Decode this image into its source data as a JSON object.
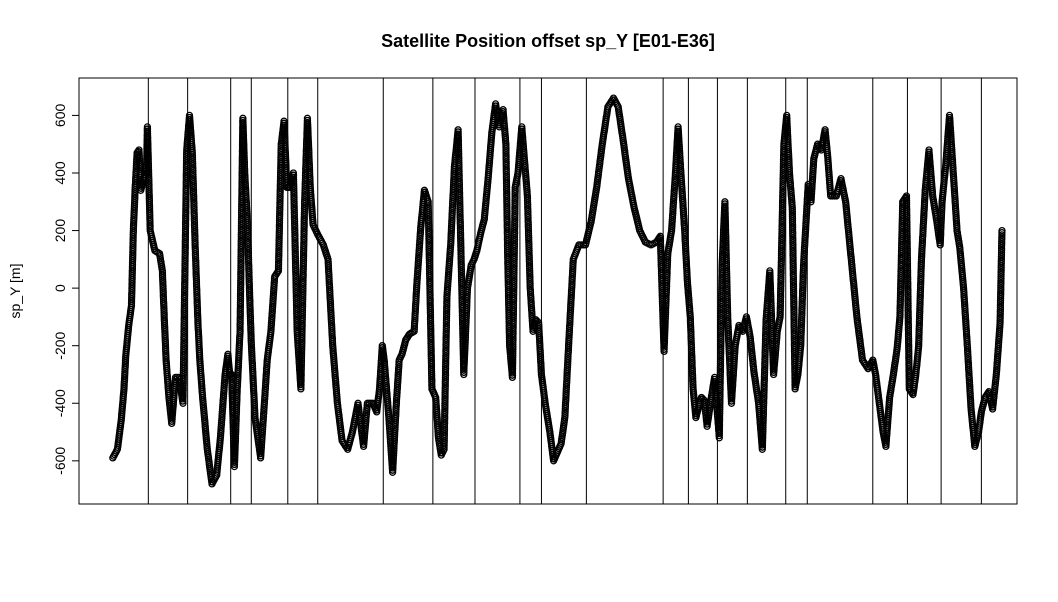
{
  "chart_data": {
    "type": "scatter",
    "title": "Satellite Position offset sp_Y [E01-E36]",
    "xlabel": "",
    "ylabel": "sp_Y [m]",
    "ylim": [
      -750,
      730
    ],
    "yticks": [
      -600,
      -400,
      -200,
      0,
      200,
      400,
      600
    ],
    "ytick_labels": [
      "-600",
      "-400",
      "-200",
      "0",
      "200",
      "400",
      "600"
    ],
    "xlim": [
      0,
      1000
    ],
    "marker": "open-circle",
    "marker_color": "#000000",
    "separators": [
      73,
      115,
      161,
      183,
      222,
      254,
      324,
      377,
      422,
      470,
      493,
      541,
      623,
      650,
      681,
      713,
      754,
      777,
      847,
      884,
      920,
      963
    ],
    "series": [
      {
        "anchors": [
          [
            35,
            -590
          ],
          [
            40,
            -560
          ],
          [
            44,
            -460
          ],
          [
            47,
            -350
          ],
          [
            49,
            -230
          ],
          [
            52,
            -130
          ],
          [
            55,
            -60
          ],
          [
            57,
            200
          ],
          [
            59,
            350
          ],
          [
            61,
            470
          ],
          [
            63,
            480
          ],
          [
            65,
            340
          ],
          [
            68,
            380
          ],
          [
            71,
            400
          ],
          [
            72,
            560
          ],
          [
            75,
            200
          ],
          [
            80,
            130
          ],
          [
            85,
            120
          ],
          [
            88,
            60
          ],
          [
            90,
            -100
          ],
          [
            92,
            -250
          ],
          [
            95,
            -380
          ],
          [
            98,
            -470
          ],
          [
            102,
            -310
          ],
          [
            106,
            -310
          ],
          [
            110,
            -400
          ],
          [
            114,
            480
          ],
          [
            117,
            600
          ],
          [
            120,
            470
          ],
          [
            123,
            150
          ],
          [
            126,
            -120
          ],
          [
            128,
            -250
          ],
          [
            131,
            -380
          ],
          [
            136,
            -560
          ],
          [
            141,
            -680
          ],
          [
            146,
            -650
          ],
          [
            150,
            -520
          ],
          [
            155,
            -300
          ],
          [
            158,
            -230
          ],
          [
            160,
            -300
          ],
          [
            162,
            -300
          ],
          [
            165,
            -620
          ],
          [
            168,
            -350
          ],
          [
            171,
            -150
          ],
          [
            174,
            590
          ],
          [
            176,
            400
          ],
          [
            179,
            220
          ],
          [
            181,
            0
          ],
          [
            183,
            -190
          ],
          [
            187,
            -450
          ],
          [
            193,
            -590
          ],
          [
            197,
            -400
          ],
          [
            200,
            -250
          ],
          [
            204,
            -150
          ],
          [
            208,
            40
          ],
          [
            212,
            60
          ],
          [
            215,
            500
          ],
          [
            218,
            580
          ],
          [
            221,
            350
          ],
          [
            224,
            350
          ],
          [
            228,
            400
          ],
          [
            232,
            -150
          ],
          [
            236,
            -350
          ],
          [
            240,
            300
          ],
          [
            243,
            590
          ],
          [
            246,
            350
          ],
          [
            249,
            220
          ],
          [
            255,
            180
          ],
          [
            260,
            150
          ],
          [
            265,
            100
          ],
          [
            270,
            -200
          ],
          [
            275,
            -400
          ],
          [
            280,
            -530
          ],
          [
            286,
            -560
          ],
          [
            291,
            -500
          ],
          [
            297,
            -400
          ],
          [
            303,
            -550
          ],
          [
            307,
            -400
          ],
          [
            313,
            -400
          ],
          [
            317,
            -430
          ],
          [
            320,
            -350
          ],
          [
            323,
            -200
          ],
          [
            325,
            -250
          ],
          [
            330,
            -450
          ],
          [
            334,
            -640
          ],
          [
            338,
            -400
          ],
          [
            341,
            -250
          ],
          [
            344,
            -230
          ],
          [
            348,
            -180
          ],
          [
            352,
            -160
          ],
          [
            357,
            -150
          ],
          [
            360,
            20
          ],
          [
            364,
            210
          ],
          [
            368,
            340
          ],
          [
            372,
            300
          ],
          [
            376,
            -350
          ],
          [
            380,
            -380
          ],
          [
            383,
            -520
          ],
          [
            386,
            -580
          ],
          [
            389,
            -560
          ],
          [
            392,
            -30
          ],
          [
            396,
            150
          ],
          [
            400,
            420
          ],
          [
            404,
            550
          ],
          [
            410,
            -300
          ],
          [
            414,
            0
          ],
          [
            418,
            80
          ],
          [
            421,
            100
          ],
          [
            424,
            130
          ],
          [
            428,
            190
          ],
          [
            432,
            240
          ],
          [
            436,
            380
          ],
          [
            440,
            540
          ],
          [
            444,
            640
          ],
          [
            448,
            560
          ],
          [
            452,
            620
          ],
          [
            455,
            500
          ],
          [
            457,
            100
          ],
          [
            459,
            -200
          ],
          [
            462,
            -310
          ],
          [
            465,
            350
          ],
          [
            468,
            400
          ],
          [
            472,
            560
          ],
          [
            475,
            440
          ],
          [
            478,
            320
          ],
          [
            481,
            0
          ],
          [
            484,
            -150
          ],
          [
            487,
            -110
          ],
          [
            490,
            -120
          ],
          [
            493,
            -300
          ],
          [
            497,
            -400
          ],
          [
            502,
            -500
          ],
          [
            506,
            -600
          ],
          [
            510,
            -570
          ],
          [
            514,
            -540
          ],
          [
            518,
            -450
          ],
          [
            522,
            -200
          ],
          [
            527,
            100
          ],
          [
            533,
            150
          ],
          [
            540,
            150
          ],
          [
            546,
            230
          ],
          [
            552,
            350
          ],
          [
            558,
            500
          ],
          [
            564,
            630
          ],
          [
            570,
            660
          ],
          [
            575,
            630
          ],
          [
            580,
            520
          ],
          [
            586,
            380
          ],
          [
            592,
            280
          ],
          [
            598,
            200
          ],
          [
            604,
            160
          ],
          [
            610,
            150
          ],
          [
            616,
            160
          ],
          [
            620,
            180
          ],
          [
            624,
            -220
          ],
          [
            628,
            120
          ],
          [
            632,
            200
          ],
          [
            636,
            390
          ],
          [
            639,
            560
          ],
          [
            642,
            400
          ],
          [
            646,
            200
          ],
          [
            649,
            20
          ],
          [
            652,
            -100
          ],
          [
            655,
            -350
          ],
          [
            658,
            -450
          ],
          [
            661,
            -410
          ],
          [
            664,
            -380
          ],
          [
            667,
            -390
          ],
          [
            670,
            -480
          ],
          [
            674,
            -390
          ],
          [
            678,
            -310
          ],
          [
            683,
            -520
          ],
          [
            686,
            80
          ],
          [
            689,
            300
          ],
          [
            692,
            -100
          ],
          [
            696,
            -400
          ],
          [
            700,
            -200
          ],
          [
            704,
            -130
          ],
          [
            708,
            -150
          ],
          [
            712,
            -100
          ],
          [
            716,
            -170
          ],
          [
            720,
            -290
          ],
          [
            725,
            -400
          ],
          [
            729,
            -560
          ],
          [
            733,
            -110
          ],
          [
            737,
            60
          ],
          [
            741,
            -300
          ],
          [
            745,
            -150
          ],
          [
            748,
            -100
          ],
          [
            752,
            500
          ],
          [
            755,
            600
          ],
          [
            758,
            400
          ],
          [
            761,
            280
          ],
          [
            764,
            -350
          ],
          [
            767,
            -300
          ],
          [
            770,
            -200
          ],
          [
            773,
            80
          ],
          [
            778,
            360
          ],
          [
            781,
            300
          ],
          [
            784,
            450
          ],
          [
            788,
            500
          ],
          [
            792,
            480
          ],
          [
            796,
            550
          ],
          [
            799,
            450
          ],
          [
            802,
            320
          ],
          [
            808,
            320
          ],
          [
            813,
            380
          ],
          [
            818,
            300
          ],
          [
            824,
            100
          ],
          [
            830,
            -100
          ],
          [
            836,
            -250
          ],
          [
            842,
            -280
          ],
          [
            847,
            -250
          ],
          [
            850,
            -300
          ],
          [
            854,
            -400
          ],
          [
            858,
            -500
          ],
          [
            861,
            -550
          ],
          [
            865,
            -380
          ],
          [
            869,
            -300
          ],
          [
            873,
            -210
          ],
          [
            876,
            -100
          ],
          [
            879,
            300
          ],
          [
            883,
            320
          ],
          [
            886,
            -350
          ],
          [
            890,
            -370
          ],
          [
            893,
            -300
          ],
          [
            896,
            -200
          ],
          [
            899,
            100
          ],
          [
            903,
            340
          ],
          [
            907,
            480
          ],
          [
            911,
            320
          ],
          [
            915,
            240
          ],
          [
            919,
            150
          ],
          [
            921,
            300
          ],
          [
            925,
            430
          ],
          [
            929,
            600
          ],
          [
            933,
            400
          ],
          [
            937,
            200
          ],
          [
            940,
            140
          ],
          [
            944,
            0
          ],
          [
            948,
            -200
          ],
          [
            952,
            -420
          ],
          [
            956,
            -550
          ],
          [
            960,
            -500
          ],
          [
            963,
            -430
          ],
          [
            967,
            -380
          ],
          [
            971,
            -360
          ],
          [
            975,
            -420
          ],
          [
            979,
            -300
          ],
          [
            983,
            -120
          ],
          [
            985,
            200
          ]
        ]
      }
    ]
  }
}
